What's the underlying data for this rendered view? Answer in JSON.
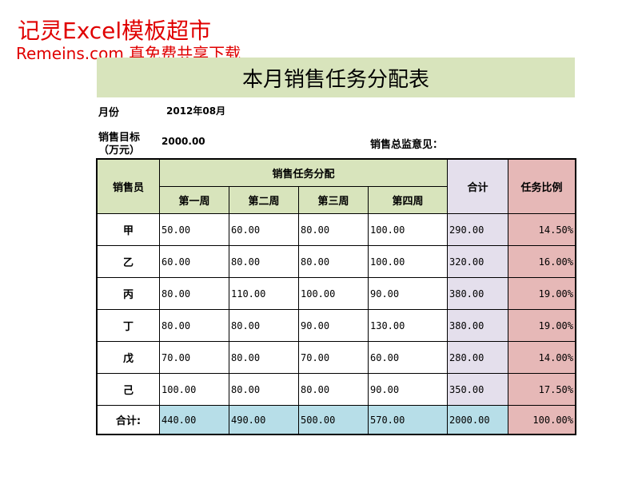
{
  "watermark": {
    "line1": "记灵Excel模板超市",
    "line2": "Remeins.com 真免费共享下载"
  },
  "header": {
    "title": "本月销售任务分配表"
  },
  "info": {
    "month_label": "月份",
    "month_value": "2012年08月",
    "target_label_1": "销售目标",
    "target_label_2": "（万元）",
    "target_value": "2000.00",
    "comment_label": "销售总监意见："
  },
  "table": {
    "headers": {
      "salesperson": "销售员",
      "group": "销售任务分配",
      "weeks": [
        "第一周",
        "第二周",
        "第三周",
        "第四周"
      ],
      "total": "合计",
      "ratio": "任务比例"
    },
    "rows": [
      [
        "甲",
        "50.00",
        "60.00",
        "80.00",
        "100.00",
        "290.00",
        "14.50%"
      ],
      [
        "乙",
        "60.00",
        "80.00",
        "80.00",
        "100.00",
        "320.00",
        "16.00%"
      ],
      [
        "丙",
        "80.00",
        "110.00",
        "100.00",
        "90.00",
        "380.00",
        "19.00%"
      ],
      [
        "丁",
        "80.00",
        "80.00",
        "90.00",
        "130.00",
        "380.00",
        "19.00%"
      ],
      [
        "戊",
        "70.00",
        "80.00",
        "70.00",
        "60.00",
        "280.00",
        "14.00%"
      ],
      [
        "己",
        "100.00",
        "80.00",
        "80.00",
        "90.00",
        "350.00",
        "17.50%"
      ]
    ],
    "footer": [
      "合计:",
      "440.00",
      "490.00",
      "500.00",
      "570.00",
      "2000.00",
      "100.00%"
    ]
  }
}
